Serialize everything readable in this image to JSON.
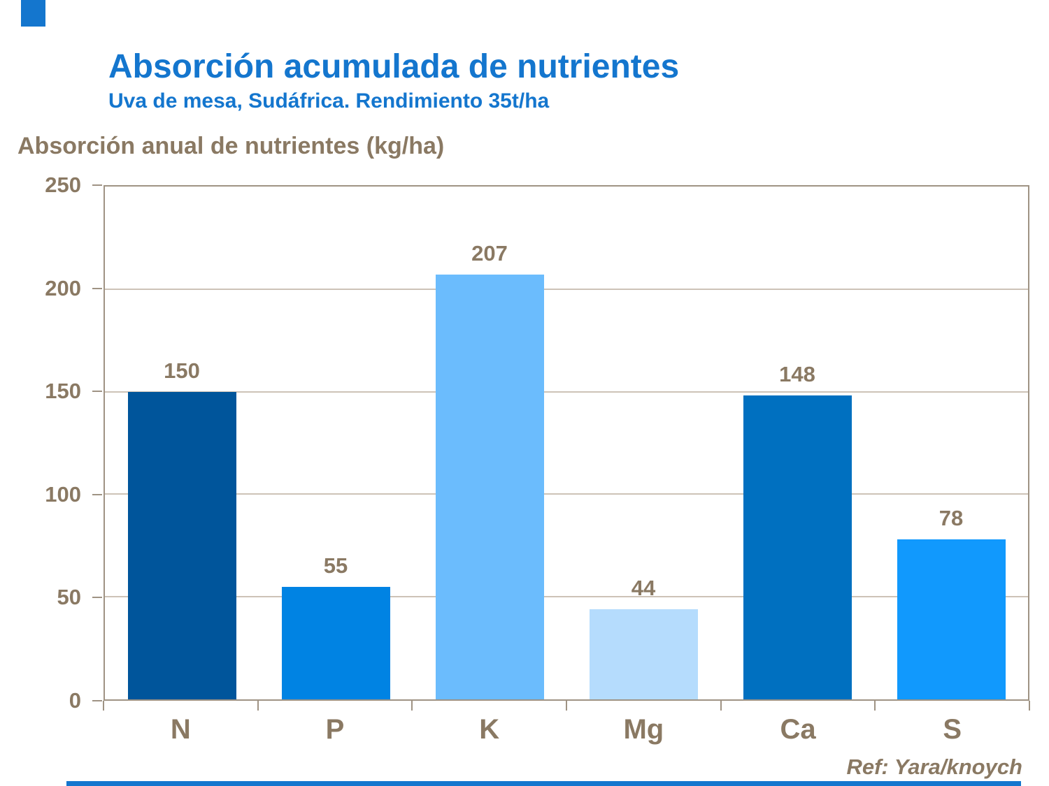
{
  "header": {
    "title_color": "#1476CE"
  },
  "chart_data": {
    "type": "bar",
    "title": "Absorción acumulada de nutrientes",
    "subtitle": "Uva de mesa, Sudáfrica. Rendimiento 35t/ha",
    "axis_title": "Absorción anual de nutrientes (kg/ha)",
    "categories": [
      "N",
      "P",
      "K",
      "Mg",
      "Ca",
      "S"
    ],
    "values": [
      150,
      55,
      207,
      44,
      148,
      78
    ],
    "bar_colors": [
      "#00559B",
      "#0083E3",
      "#6BBCFD",
      "#B5DCFD",
      "#0070C0",
      "#1199FD"
    ],
    "xlabel": "",
    "ylabel": "Absorción anual de nutrientes (kg/ha)",
    "ylim": [
      0,
      250
    ],
    "yticks": [
      0,
      50,
      100,
      150,
      200,
      250
    ],
    "grid": true,
    "legend_position": "none",
    "label_color": "#8A7963"
  },
  "footer": {
    "ref": "Ref: Yara/knoych"
  },
  "colors": {
    "title_blue": "#1476CE",
    "label_brown": "#8A7963",
    "axis_line": "#9F9384",
    "gridline": "#CDC3B7",
    "deco_blue": "#1476CE"
  }
}
